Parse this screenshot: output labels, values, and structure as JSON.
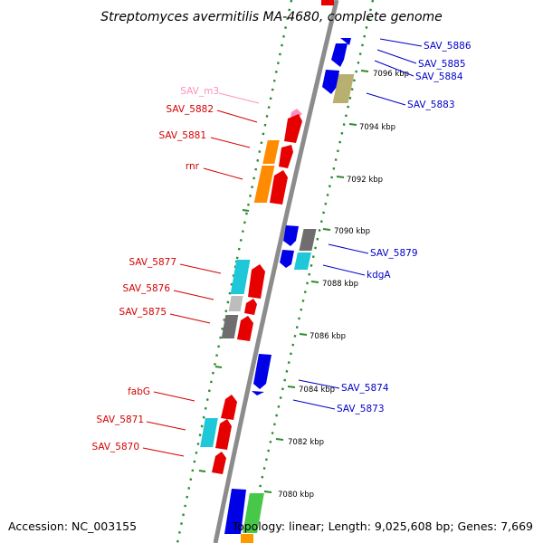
{
  "title": "Streptomyces avermitilis MA-4680, complete genome",
  "footer": {
    "accession": "Accession: NC_003155",
    "topology": "Topology: linear; Length: 9,025,608 bp; Genes: 7,669"
  },
  "scale_labels": [
    "7096 kbp",
    "7094 kbp",
    "7092 kbp",
    "7090 kbp",
    "7088 kbp",
    "7086 kbp",
    "7084 kbp",
    "7082 kbp",
    "7080 kbp"
  ],
  "colors": {
    "backbone": "#8c8c8c",
    "dots": "#2e8b2e",
    "left_label": "#d40000",
    "right_label": "#0000c8",
    "rna_label": "#ff8fbf"
  },
  "left_labels": [
    {
      "text": "SAV_m3",
      "color": "rna"
    },
    {
      "text": "SAV_5882",
      "color": "left"
    },
    {
      "text": "SAV_5881",
      "color": "left"
    },
    {
      "text": "rnr",
      "color": "left"
    },
    {
      "text": "SAV_5877",
      "color": "left"
    },
    {
      "text": "SAV_5876",
      "color": "left"
    },
    {
      "text": "SAV_5875",
      "color": "left"
    },
    {
      "text": "fabG",
      "color": "left"
    },
    {
      "text": "SAV_5871",
      "color": "left"
    },
    {
      "text": "SAV_5870",
      "color": "left"
    }
  ],
  "right_labels": [
    {
      "text": "SAV_5886"
    },
    {
      "text": "SAV_5885"
    },
    {
      "text": "SAV_5884"
    },
    {
      "text": "SAV_5883"
    },
    {
      "text": "SAV_5879"
    },
    {
      "text": "kdgA"
    },
    {
      "text": "SAV_5874"
    },
    {
      "text": "SAV_5873"
    }
  ]
}
